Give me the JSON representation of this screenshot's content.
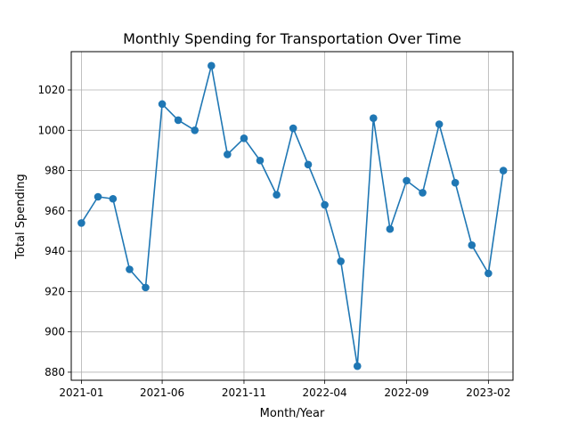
{
  "chart_data": {
    "type": "line",
    "title": "Monthly Spending for Transportation Over Time",
    "xlabel": "Month/Year",
    "ylabel": "Total Spending",
    "x": [
      "2021-01",
      "2021-02",
      "2021-03",
      "2021-04",
      "2021-05",
      "2021-06",
      "2021-07",
      "2021-08",
      "2021-09",
      "2021-10",
      "2021-11",
      "2021-12",
      "2022-01",
      "2022-02",
      "2022-03",
      "2022-04",
      "2022-05",
      "2022-06",
      "2022-07",
      "2022-08",
      "2022-09",
      "2022-10",
      "2022-11",
      "2022-12",
      "2023-01",
      "2023-02",
      "2023-03"
    ],
    "series": [
      {
        "values": [
          954,
          967,
          966,
          931,
          922,
          1013,
          1005,
          1000,
          1032,
          988,
          996,
          985,
          968,
          1001,
          983,
          963,
          935,
          883,
          1006,
          951,
          975,
          969,
          1003,
          974,
          943,
          929,
          980
        ]
      }
    ],
    "x_ticks": [
      "2021-01",
      "2021-06",
      "2021-11",
      "2022-04",
      "2022-09",
      "2023-02"
    ],
    "y_ticks": [
      880,
      900,
      920,
      940,
      960,
      980,
      1000,
      1020
    ],
    "ylim": [
      876,
      1039
    ],
    "xlim": [
      "2020-12-13",
      "2023-03-19"
    ],
    "grid": true,
    "color": "#1f77b4"
  }
}
